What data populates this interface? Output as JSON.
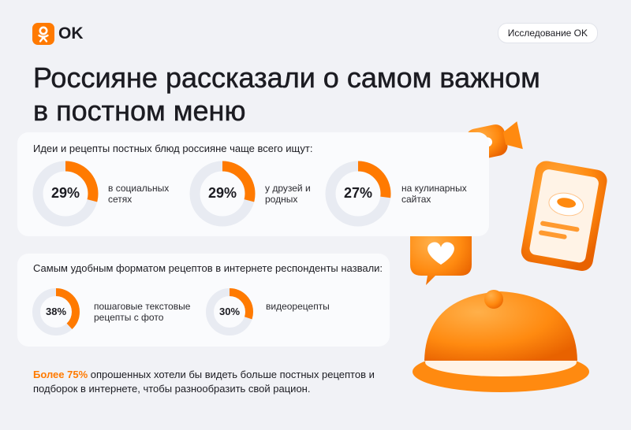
{
  "brand": "OK",
  "badge": "Исследование OK",
  "headline": [
    "Россияне рассказали о самом важном",
    "в постном меню"
  ],
  "chart_data": [
    {
      "type": "donut",
      "title": "Идеи и рецепты постных блюд россияне чаще всего ищут:",
      "categories": [
        "в социальных сетях",
        "у друзей и родных",
        "на кулинарных сайтах"
      ],
      "values": [
        29,
        29,
        27
      ],
      "value_labels": [
        "29%",
        "29%",
        "27%"
      ],
      "color": "#ff7a00"
    },
    {
      "type": "donut",
      "title": "Самым удобным форматом рецептов в интернете респонденты назвали:",
      "categories": [
        "пошаговые текстовые рецепты с фото",
        "видеорецепты"
      ],
      "values": [
        38,
        30
      ],
      "value_labels": [
        "38%",
        "30%"
      ],
      "color": "#ff7a00"
    }
  ],
  "footer": {
    "highlight": "Более 75%",
    "text": "опрошенных хотели бы видеть больше постных рецептов и подборок в интернете, чтобы разнообразить свой рацион."
  }
}
